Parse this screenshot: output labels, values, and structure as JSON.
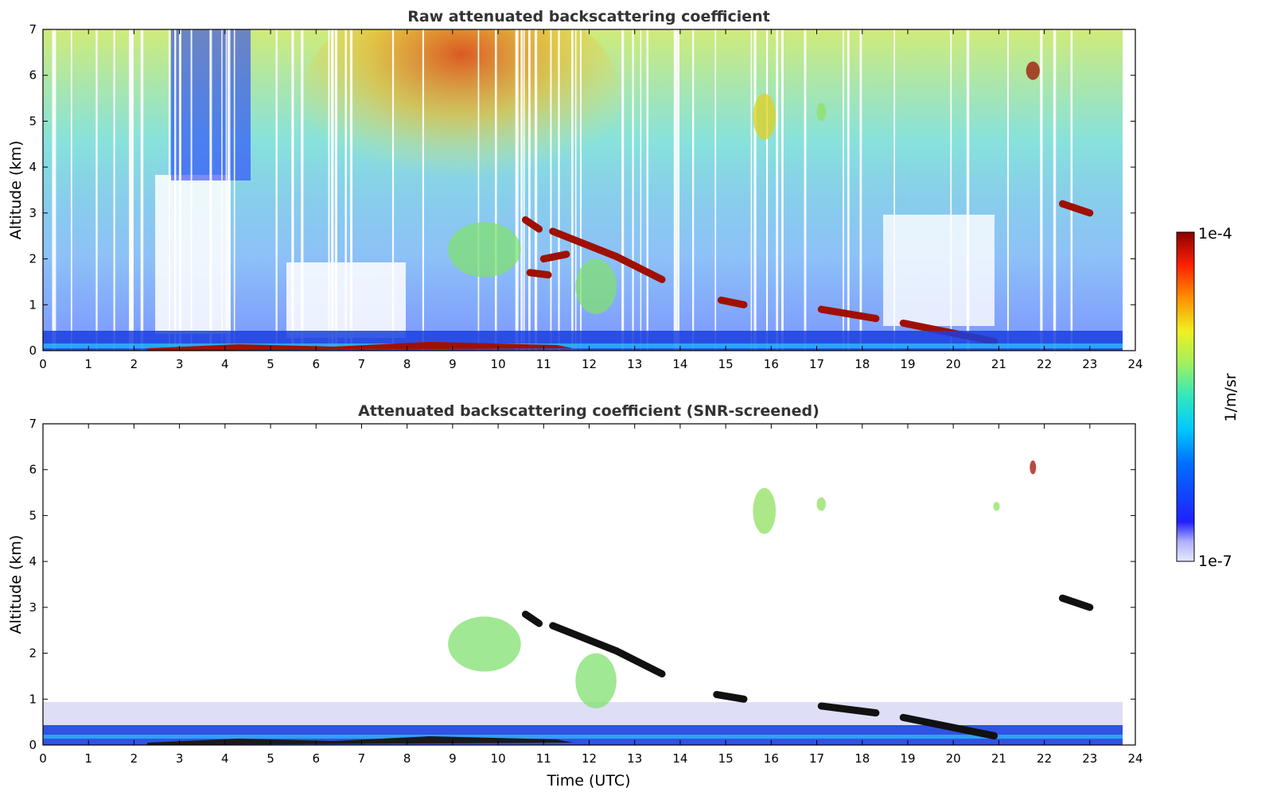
{
  "chart_data": [
    {
      "type": "heatmap",
      "title": "Raw attenuated backscattering coefficient",
      "xlabel": "",
      "ylabel": "Altitude (km)",
      "xlim": [
        0,
        24
      ],
      "ylim": [
        0,
        7
      ],
      "xticks": [
        "0",
        "1",
        "2",
        "3",
        "4",
        "5",
        "6",
        "7",
        "8",
        "9",
        "10",
        "11",
        "12",
        "13",
        "14",
        "15",
        "16",
        "17",
        "18",
        "19",
        "20",
        "21",
        "22",
        "23",
        "24"
      ],
      "yticks": [
        "0",
        "1",
        "2",
        "3",
        "4",
        "5",
        "6",
        "7"
      ],
      "background_signal": {
        "time_end": 23.7,
        "upper_noise_level": "yellow-green to red (7–9 UTC peak)",
        "lower_level": "blue"
      },
      "features": [
        {
          "kind": "cloud_layer",
          "t": [
            10.6,
            10.9
          ],
          "z": [
            2.85,
            2.65
          ],
          "level": "high"
        },
        {
          "kind": "cloud_layer",
          "t": [
            11.2,
            12.6
          ],
          "z": [
            2.6,
            2.05
          ],
          "level": "high"
        },
        {
          "kind": "cloud_layer",
          "t": [
            12.6,
            13.6
          ],
          "z": [
            2.05,
            1.55
          ],
          "level": "high"
        },
        {
          "kind": "cloud_layer",
          "t": [
            11.0,
            11.5
          ],
          "z": [
            2.0,
            2.1
          ],
          "level": "high"
        },
        {
          "kind": "cloud_layer",
          "t": [
            10.7,
            11.1
          ],
          "z": [
            1.7,
            1.65
          ],
          "level": "high"
        },
        {
          "kind": "cloud_layer",
          "t": [
            14.9,
            15.4
          ],
          "z": [
            1.1,
            1.0
          ],
          "level": "high"
        },
        {
          "kind": "cloud_layer",
          "t": [
            17.1,
            18.3
          ],
          "z": [
            0.9,
            0.7
          ],
          "level": "high"
        },
        {
          "kind": "cloud_layer",
          "t": [
            18.9,
            20.9
          ],
          "z": [
            0.6,
            0.2
          ],
          "level": "high"
        },
        {
          "kind": "cloud_layer",
          "t": [
            22.4,
            23.0
          ],
          "z": [
            3.2,
            3.0
          ],
          "level": "high"
        },
        {
          "kind": "aerosol_plume",
          "t": [
            8.9,
            10.5
          ],
          "z": [
            1.6,
            2.8
          ],
          "level": "medium"
        },
        {
          "kind": "aerosol_plume",
          "t": [
            11.7,
            12.6
          ],
          "z": [
            0.8,
            2.0
          ],
          "level": "medium"
        },
        {
          "kind": "cirrus",
          "t": [
            15.6,
            16.1
          ],
          "z": [
            4.6,
            5.6
          ],
          "level": "medium-high"
        },
        {
          "kind": "cirrus",
          "t": [
            17.0,
            17.2
          ],
          "z": [
            5.0,
            5.4
          ],
          "level": "medium"
        },
        {
          "kind": "cirrus",
          "t": [
            21.6,
            21.9
          ],
          "z": [
            5.9,
            6.3
          ],
          "level": "high"
        },
        {
          "kind": "surface_layer",
          "t": [
            0,
            23.7
          ],
          "z": [
            0,
            0.45
          ],
          "level": "low-medium"
        }
      ]
    },
    {
      "type": "heatmap",
      "title": "Attenuated backscattering coefficient (SNR-screened)",
      "xlabel": "Time (UTC)",
      "ylabel": "Altitude (km)",
      "xlim": [
        0,
        24
      ],
      "ylim": [
        0,
        7
      ],
      "xticks": [
        "0",
        "1",
        "2",
        "3",
        "4",
        "5",
        "6",
        "7",
        "8",
        "9",
        "10",
        "11",
        "12",
        "13",
        "14",
        "15",
        "16",
        "17",
        "18",
        "19",
        "20",
        "21",
        "22",
        "23",
        "24"
      ],
      "yticks": [
        "0",
        "1",
        "2",
        "3",
        "4",
        "5",
        "6",
        "7"
      ],
      "features": [
        {
          "kind": "cloud_layer",
          "t": [
            10.6,
            10.9
          ],
          "z": [
            2.85,
            2.65
          ],
          "level": "saturated"
        },
        {
          "kind": "cloud_layer",
          "t": [
            11.2,
            12.6
          ],
          "z": [
            2.6,
            2.05
          ],
          "level": "saturated"
        },
        {
          "kind": "cloud_layer",
          "t": [
            12.6,
            13.6
          ],
          "z": [
            2.05,
            1.55
          ],
          "level": "saturated"
        },
        {
          "kind": "cloud_layer",
          "t": [
            14.8,
            15.4
          ],
          "z": [
            1.1,
            1.0
          ],
          "level": "saturated"
        },
        {
          "kind": "cloud_layer",
          "t": [
            17.1,
            18.3
          ],
          "z": [
            0.85,
            0.7
          ],
          "level": "saturated"
        },
        {
          "kind": "cloud_layer",
          "t": [
            18.9,
            20.9
          ],
          "z": [
            0.6,
            0.2
          ],
          "level": "saturated"
        },
        {
          "kind": "cloud_layer",
          "t": [
            22.4,
            23.0
          ],
          "z": [
            3.2,
            3.0
          ],
          "level": "saturated"
        },
        {
          "kind": "aerosol_plume",
          "t": [
            8.9,
            10.5
          ],
          "z": [
            1.6,
            2.8
          ],
          "level": "medium"
        },
        {
          "kind": "aerosol_plume",
          "t": [
            11.7,
            12.6
          ],
          "z": [
            0.8,
            2.0
          ],
          "level": "medium"
        },
        {
          "kind": "cirrus",
          "t": [
            15.6,
            16.1
          ],
          "z": [
            4.6,
            5.6
          ],
          "level": "medium"
        },
        {
          "kind": "cirrus",
          "t": [
            17.0,
            17.2
          ],
          "z": [
            5.1,
            5.4
          ],
          "level": "medium"
        },
        {
          "kind": "cirrus",
          "t": [
            20.9,
            21.0
          ],
          "z": [
            5.1,
            5.3
          ],
          "level": "medium"
        },
        {
          "kind": "cirrus",
          "t": [
            21.7,
            21.8
          ],
          "z": [
            5.9,
            6.2
          ],
          "level": "high"
        },
        {
          "kind": "boundary_layer",
          "t": [
            0,
            23.7
          ],
          "z": [
            0,
            0.9
          ],
          "level": "low-medium"
        }
      ]
    }
  ],
  "colorbar": {
    "max_label": "1e-4",
    "min_label": "1e-7",
    "unit_label": "1/m/sr",
    "colormap": "jet"
  },
  "colors": {
    "title": "#333333",
    "high": "#8b0000",
    "saturated": "#000000"
  }
}
